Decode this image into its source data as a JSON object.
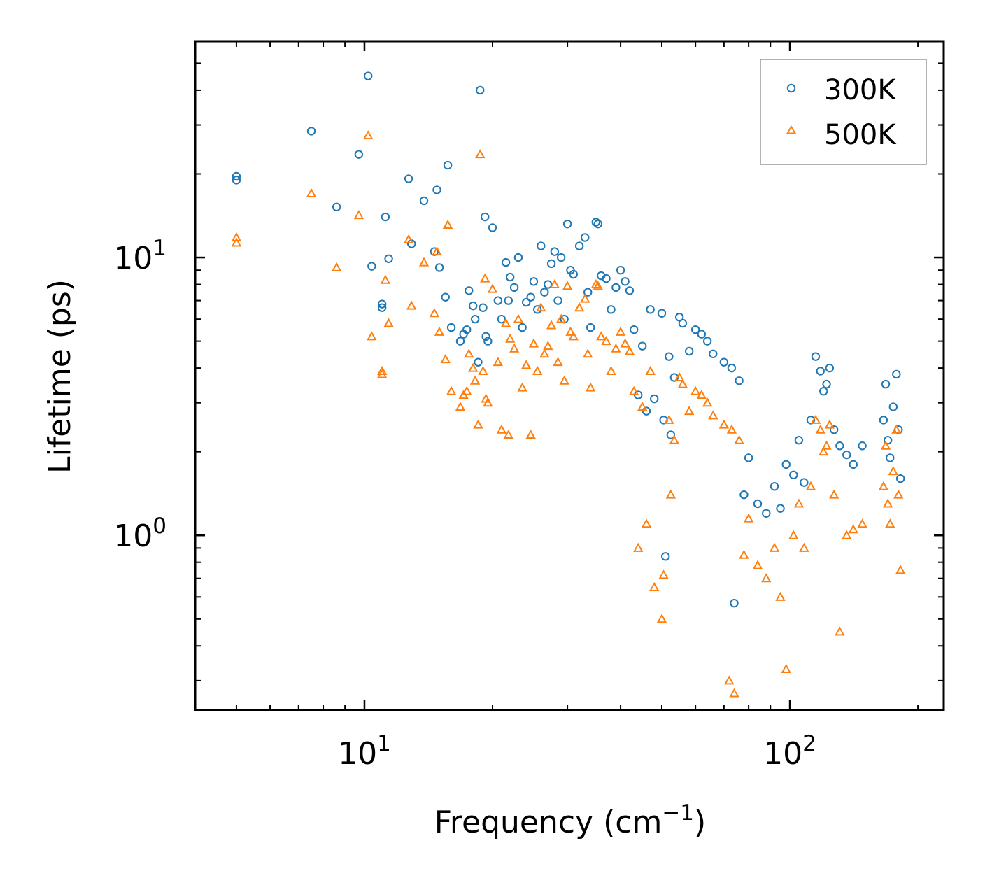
{
  "chart_data": {
    "type": "scatter",
    "title": "",
    "xlabel": "Frequency (cm",
    "xlabel_sup": "−1",
    "xlabel_end": ")",
    "ylabel": "Lifetime (ps)",
    "xscale": "log",
    "yscale": "log",
    "xlim": [
      4.0,
      230.0
    ],
    "ylim": [
      0.235,
      60.0
    ],
    "x_ticks": [
      {
        "value": 10,
        "base": "10",
        "exp": "1"
      },
      {
        "value": 100,
        "base": "10",
        "exp": "2"
      }
    ],
    "y_ticks": [
      {
        "value": 1,
        "base": "10",
        "exp": "0"
      },
      {
        "value": 10,
        "base": "10",
        "exp": "1"
      }
    ],
    "legend_position": "top-right",
    "series": [
      {
        "name": "300K",
        "marker": "circle",
        "color": "#1f77b4",
        "points": [
          [
            5.0,
            19.6
          ],
          [
            5.0,
            19.0
          ],
          [
            7.5,
            28.5
          ],
          [
            8.6,
            15.2
          ],
          [
            9.7,
            23.5
          ],
          [
            10.2,
            45.0
          ],
          [
            10.4,
            9.3
          ],
          [
            11.0,
            6.8
          ],
          [
            11.0,
            6.6
          ],
          [
            11.2,
            14.0
          ],
          [
            11.4,
            9.9
          ],
          [
            12.7,
            19.2
          ],
          [
            12.9,
            11.2
          ],
          [
            13.8,
            16.0
          ],
          [
            14.6,
            10.5
          ],
          [
            14.8,
            17.5
          ],
          [
            15.0,
            9.2
          ],
          [
            15.5,
            7.2
          ],
          [
            15.7,
            21.5
          ],
          [
            16.0,
            5.6
          ],
          [
            16.8,
            5.0
          ],
          [
            17.1,
            5.3
          ],
          [
            17.4,
            5.5
          ],
          [
            17.6,
            7.6
          ],
          [
            18.0,
            6.7
          ],
          [
            18.2,
            6.0
          ],
          [
            18.5,
            4.2
          ],
          [
            18.7,
            40.0
          ],
          [
            19.0,
            6.6
          ],
          [
            19.2,
            14.0
          ],
          [
            19.3,
            5.2
          ],
          [
            19.5,
            5.0
          ],
          [
            20.0,
            12.8
          ],
          [
            20.6,
            7.0
          ],
          [
            21.0,
            6.0
          ],
          [
            21.5,
            9.6
          ],
          [
            21.8,
            7.0
          ],
          [
            22.0,
            8.5
          ],
          [
            22.5,
            7.8
          ],
          [
            23.0,
            10.0
          ],
          [
            23.5,
            5.6
          ],
          [
            24.0,
            6.9
          ],
          [
            24.6,
            7.2
          ],
          [
            25.0,
            8.2
          ],
          [
            25.5,
            6.5
          ],
          [
            26.0,
            11.0
          ],
          [
            26.5,
            7.5
          ],
          [
            27.0,
            8.0
          ],
          [
            27.5,
            9.5
          ],
          [
            28.0,
            10.5
          ],
          [
            28.5,
            7.0
          ],
          [
            29.0,
            10.0
          ],
          [
            29.5,
            6.0
          ],
          [
            30.0,
            13.2
          ],
          [
            30.5,
            9.0
          ],
          [
            31.0,
            8.7
          ],
          [
            32.0,
            11.0
          ],
          [
            33.0,
            11.8
          ],
          [
            33.5,
            7.5
          ],
          [
            34.0,
            5.6
          ],
          [
            35.0,
            13.4
          ],
          [
            35.4,
            13.2
          ],
          [
            36.0,
            8.6
          ],
          [
            37.0,
            8.4
          ],
          [
            38.0,
            6.5
          ],
          [
            39.0,
            7.8
          ],
          [
            40.0,
            9.0
          ],
          [
            41.0,
            8.2
          ],
          [
            42.0,
            7.6
          ],
          [
            43.0,
            5.5
          ],
          [
            45.0,
            4.8
          ],
          [
            47.0,
            6.5
          ],
          [
            50.0,
            6.3
          ],
          [
            52.0,
            4.4
          ],
          [
            53.5,
            3.7
          ],
          [
            55.0,
            6.1
          ],
          [
            56.0,
            5.8
          ],
          [
            58.0,
            4.6
          ],
          [
            60.0,
            5.5
          ],
          [
            62.0,
            5.3
          ],
          [
            64.0,
            5.0
          ],
          [
            66.0,
            4.5
          ],
          [
            70.0,
            4.2
          ],
          [
            73.0,
            4.0
          ],
          [
            76.0,
            3.6
          ],
          [
            48.0,
            3.1
          ],
          [
            50.5,
            2.6
          ],
          [
            52.5,
            2.3
          ],
          [
            46.0,
            2.8
          ],
          [
            44.0,
            3.2
          ],
          [
            51.0,
            0.84
          ],
          [
            74.0,
            0.57
          ],
          [
            78.0,
            1.4
          ],
          [
            80.0,
            1.9
          ],
          [
            84.0,
            1.3
          ],
          [
            88.0,
            1.2
          ],
          [
            92.0,
            1.5
          ],
          [
            95.0,
            1.25
          ],
          [
            98.0,
            1.8
          ],
          [
            102.0,
            1.65
          ],
          [
            105.0,
            2.2
          ],
          [
            108.0,
            1.55
          ],
          [
            112.0,
            2.6
          ],
          [
            115.0,
            4.4
          ],
          [
            118.0,
            3.9
          ],
          [
            120.0,
            3.3
          ],
          [
            122.0,
            3.5
          ],
          [
            124.0,
            4.0
          ],
          [
            127.0,
            2.4
          ],
          [
            131.0,
            2.1
          ],
          [
            136.0,
            1.95
          ],
          [
            141.0,
            1.8
          ],
          [
            148.0,
            2.1
          ],
          [
            166.0,
            2.6
          ],
          [
            168.0,
            3.5
          ],
          [
            170.0,
            2.2
          ],
          [
            172.0,
            1.9
          ],
          [
            175.0,
            2.9
          ],
          [
            178.0,
            3.8
          ],
          [
            180.0,
            2.4
          ],
          [
            182.0,
            1.6
          ]
        ]
      },
      {
        "name": "500K",
        "marker": "triangle",
        "color": "#ff7f0e",
        "points": [
          [
            5.0,
            11.8
          ],
          [
            5.0,
            11.3
          ],
          [
            7.5,
            17.0
          ],
          [
            8.6,
            9.2
          ],
          [
            9.7,
            14.2
          ],
          [
            10.2,
            27.5
          ],
          [
            10.4,
            5.2
          ],
          [
            11.0,
            3.9
          ],
          [
            11.0,
            3.8
          ],
          [
            11.2,
            8.3
          ],
          [
            11.4,
            5.8
          ],
          [
            12.7,
            11.6
          ],
          [
            12.9,
            6.7
          ],
          [
            13.8,
            9.6
          ],
          [
            14.6,
            6.3
          ],
          [
            14.8,
            10.5
          ],
          [
            15.0,
            5.4
          ],
          [
            15.5,
            4.3
          ],
          [
            15.7,
            13.1
          ],
          [
            16.0,
            3.3
          ],
          [
            16.8,
            2.9
          ],
          [
            17.1,
            3.2
          ],
          [
            17.4,
            3.3
          ],
          [
            17.6,
            4.5
          ],
          [
            18.0,
            4.0
          ],
          [
            18.2,
            3.6
          ],
          [
            18.5,
            2.5
          ],
          [
            18.7,
            23.5
          ],
          [
            19.0,
            3.9
          ],
          [
            19.2,
            8.4
          ],
          [
            19.3,
            3.1
          ],
          [
            19.5,
            3.0
          ],
          [
            20.0,
            7.7
          ],
          [
            20.6,
            4.2
          ],
          [
            21.0,
            2.4
          ],
          [
            21.5,
            5.8
          ],
          [
            21.8,
            2.3
          ],
          [
            22.0,
            5.1
          ],
          [
            22.5,
            4.7
          ],
          [
            23.0,
            6.0
          ],
          [
            23.5,
            3.4
          ],
          [
            24.0,
            4.1
          ],
          [
            24.6,
            2.3
          ],
          [
            25.0,
            4.9
          ],
          [
            25.5,
            3.9
          ],
          [
            26.0,
            6.6
          ],
          [
            26.5,
            4.5
          ],
          [
            27.0,
            4.8
          ],
          [
            27.5,
            5.7
          ],
          [
            28.0,
            8.0
          ],
          [
            28.5,
            4.2
          ],
          [
            29.0,
            6.0
          ],
          [
            29.5,
            3.6
          ],
          [
            30.0,
            7.9
          ],
          [
            30.5,
            5.4
          ],
          [
            31.0,
            5.2
          ],
          [
            32.0,
            6.6
          ],
          [
            33.0,
            7.1
          ],
          [
            33.5,
            4.5
          ],
          [
            34.0,
            3.4
          ],
          [
            35.0,
            8.0
          ],
          [
            35.4,
            7.9
          ],
          [
            36.0,
            5.2
          ],
          [
            37.0,
            5.0
          ],
          [
            38.0,
            3.9
          ],
          [
            39.0,
            4.7
          ],
          [
            40.0,
            5.4
          ],
          [
            41.0,
            4.9
          ],
          [
            42.0,
            4.6
          ],
          [
            43.0,
            3.3
          ],
          [
            45.0,
            2.9
          ],
          [
            47.0,
            3.9
          ],
          [
            50.0,
            0.5
          ],
          [
            52.0,
            2.6
          ],
          [
            53.5,
            2.2
          ],
          [
            55.0,
            3.7
          ],
          [
            56.0,
            3.5
          ],
          [
            58.0,
            2.8
          ],
          [
            60.0,
            3.3
          ],
          [
            62.0,
            3.2
          ],
          [
            64.0,
            3.0
          ],
          [
            66.0,
            2.7
          ],
          [
            70.0,
            2.5
          ],
          [
            73.0,
            2.4
          ],
          [
            76.0,
            2.2
          ],
          [
            48.0,
            0.65
          ],
          [
            50.5,
            0.72
          ],
          [
            52.5,
            1.4
          ],
          [
            46.0,
            1.1
          ],
          [
            44.0,
            0.9
          ],
          [
            72.0,
            0.3
          ],
          [
            74.0,
            0.27
          ],
          [
            78.0,
            0.85
          ],
          [
            80.0,
            1.15
          ],
          [
            84.0,
            0.78
          ],
          [
            88.0,
            0.7
          ],
          [
            92.0,
            0.9
          ],
          [
            95.0,
            0.6
          ],
          [
            98.0,
            0.33
          ],
          [
            102.0,
            1.0
          ],
          [
            105.0,
            1.3
          ],
          [
            108.0,
            0.9
          ],
          [
            112.0,
            1.5
          ],
          [
            115.0,
            2.6
          ],
          [
            118.0,
            2.4
          ],
          [
            120.0,
            2.0
          ],
          [
            122.0,
            2.1
          ],
          [
            124.0,
            2.5
          ],
          [
            127.0,
            1.4
          ],
          [
            131.0,
            0.45
          ],
          [
            136.0,
            1.0
          ],
          [
            141.0,
            1.05
          ],
          [
            148.0,
            1.1
          ],
          [
            166.0,
            1.5
          ],
          [
            168.0,
            2.1
          ],
          [
            170.0,
            1.3
          ],
          [
            172.0,
            1.1
          ],
          [
            175.0,
            1.7
          ],
          [
            178.0,
            2.4
          ],
          [
            180.0,
            1.4
          ],
          [
            182.0,
            0.75
          ]
        ]
      }
    ]
  }
}
